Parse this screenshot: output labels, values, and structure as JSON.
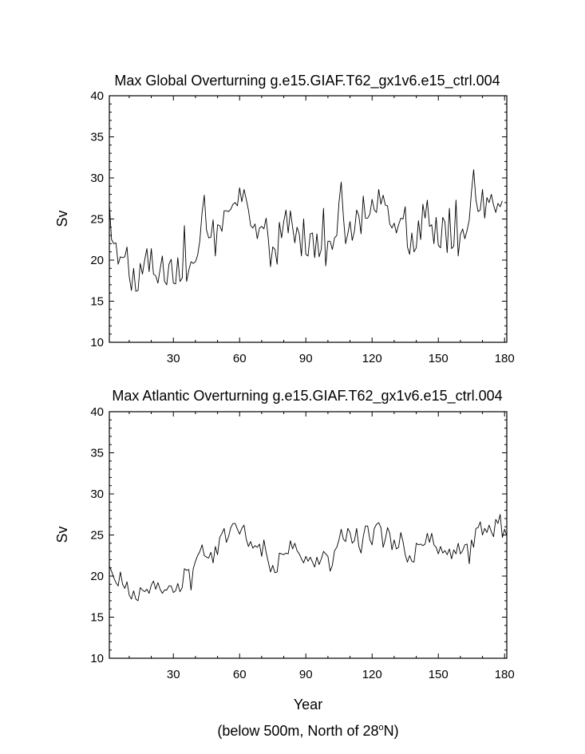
{
  "footnote": {
    "prefix": "(below 500m, North of 28",
    "degree": "o",
    "suffix": "N)"
  },
  "chart_data": [
    {
      "type": "line",
      "title": "Max Global Overturning g.e15.GIAF.T62_gx1v6.e15_ctrl.004",
      "ylabel": "Sv",
      "xlabel": "",
      "xlim": [
        1,
        181
      ],
      "ylim": [
        10,
        40
      ],
      "xticks": [
        30,
        60,
        90,
        120,
        150,
        180
      ],
      "yticks": [
        10,
        15,
        20,
        25,
        30,
        35,
        40
      ],
      "grid": false,
      "x_start": 1,
      "values": [
        26.8,
        22.5,
        22.0,
        22.1,
        19.5,
        20.4,
        20.3,
        20.4,
        21.6,
        18.0,
        16.3,
        19.0,
        16.2,
        16.3,
        19.6,
        18.3,
        20.0,
        21.4,
        18.6,
        21.4,
        18.3,
        18.1,
        17.2,
        18.9,
        20.5,
        17.4,
        17.0,
        19.5,
        20.1,
        17.2,
        17.1,
        20.3,
        17.4,
        17.8,
        24.2,
        17.4,
        18.8,
        19.8,
        19.6,
        19.8,
        20.6,
        22.4,
        25.8,
        27.9,
        23.7,
        22.7,
        22.8,
        24.9,
        20.5,
        24.3,
        24.2,
        23.5,
        26.0,
        26.0,
        25.9,
        26.2,
        26.8,
        27.0,
        26.6,
        28.8,
        27.1,
        28.6,
        27.4,
        26.1,
        24.2,
        23.9,
        24.4,
        22.6,
        23.9,
        24.1,
        23.8,
        25.1,
        22.6,
        19.2,
        21.6,
        21.3,
        19.5,
        24.6,
        22.7,
        24.7,
        26.1,
        23.3,
        26.0,
        24.0,
        22.1,
        24.0,
        23.2,
        20.5,
        25.0,
        20.7,
        20.5,
        23.2,
        23.3,
        20.3,
        23.2,
        20.4,
        21.3,
        26.3,
        19.3,
        22.3,
        22.3,
        21.3,
        22.7,
        23.0,
        27.0,
        29.5,
        25.3,
        22.0,
        23.2,
        24.7,
        22.4,
        23.5,
        26.1,
        25.4,
        23.2,
        27.8,
        25.1,
        25.1,
        25.6,
        27.4,
        26.1,
        25.8,
        28.6,
        26.8,
        27.9,
        26.7,
        26.6,
        24.4,
        23.9,
        24.5,
        23.3,
        24.3,
        25.1,
        25.0,
        26.5,
        21.6,
        20.7,
        23.3,
        21.0,
        21.5,
        24.8,
        22.5,
        26.8,
        25.1,
        27.3,
        24.1,
        24.3,
        22.0,
        25.2,
        21.8,
        21.5,
        25.2,
        24.6,
        20.9,
        26.3,
        21.4,
        21.7,
        27.3,
        20.5,
        23.1,
        23.8,
        22.6,
        23.6,
        24.9,
        28.3,
        31.0,
        27.4,
        25.9,
        26.1,
        28.6,
        25.1,
        27.6,
        27.0,
        28.0,
        26.7,
        25.8,
        26.9,
        26.5,
        27.2
      ]
    },
    {
      "type": "line",
      "title": "Max Atlantic Overturning g.e15.GIAF.T62_gx1v6.e15_ctrl.004",
      "ylabel": "Sv",
      "xlabel": "Year",
      "xlim": [
        1,
        181
      ],
      "ylim": [
        10,
        40
      ],
      "xticks": [
        30,
        60,
        90,
        120,
        150,
        180
      ],
      "yticks": [
        10,
        15,
        20,
        25,
        30,
        35,
        40
      ],
      "grid": false,
      "x_start": 1,
      "values": [
        21.2,
        20.6,
        19.8,
        19.2,
        18.8,
        20.5,
        19.0,
        18.5,
        19.3,
        17.7,
        17.2,
        18.2,
        17.2,
        17.0,
        18.6,
        18.3,
        18.1,
        18.4,
        17.9,
        18.9,
        19.4,
        18.4,
        19.2,
        18.4,
        17.9,
        18.3,
        18.3,
        18.8,
        18.8,
        18.0,
        18.2,
        19.1,
        18.1,
        18.6,
        20.9,
        20.7,
        20.8,
        18.3,
        20.9,
        21.8,
        22.5,
        23.0,
        23.8,
        22.5,
        22.3,
        22.2,
        22.9,
        21.6,
        23.6,
        22.6,
        24.7,
        25.2,
        25.8,
        24.1,
        24.8,
        25.9,
        26.4,
        26.4,
        25.7,
        25.1,
        25.8,
        26.2,
        24.5,
        23.6,
        24.2,
        23.4,
        23.7,
        23.5,
        23.9,
        22.4,
        24.4,
        22.9,
        21.7,
        20.5,
        21.3,
        20.4,
        20.5,
        22.8,
        22.7,
        22.6,
        22.8,
        22.7,
        24.3,
        23.3,
        24.0,
        23.1,
        22.7,
        22.1,
        21.6,
        22.4,
        21.8,
        22.3,
        21.7,
        21.1,
        22.3,
        21.4,
        22.1,
        23.0,
        22.7,
        22.4,
        20.6,
        21.3,
        23.1,
        23.5,
        24.4,
        25.7,
        24.5,
        24.2,
        25.8,
        25.3,
        24.0,
        24.3,
        25.8,
        23.6,
        22.8,
        24.8,
        26.1,
        26.1,
        24.4,
        23.8,
        25.8,
        26.3,
        26.5,
        25.9,
        23.5,
        24.5,
        25.9,
        25.2,
        23.2,
        24.4,
        23.3,
        23.5,
        25.3,
        24.2,
        22.6,
        21.7,
        22.5,
        21.8,
        21.7,
        24.0,
        23.8,
        23.9,
        23.7,
        23.9,
        25.2,
        24.1,
        25.2,
        23.8,
        23.5,
        22.7,
        23.6,
        22.8,
        23.1,
        22.6,
        23.3,
        22.1,
        23.2,
        22.7,
        24.0,
        22.7,
        23.1,
        23.8,
        23.9,
        21.5,
        24.4,
        23.5,
        25.8,
        25.9,
        26.6,
        25.0,
        25.8,
        25.3,
        26.2,
        25.4,
        24.8,
        26.9,
        26.4,
        27.5,
        24.7,
        25.7,
        24.9
      ]
    }
  ]
}
